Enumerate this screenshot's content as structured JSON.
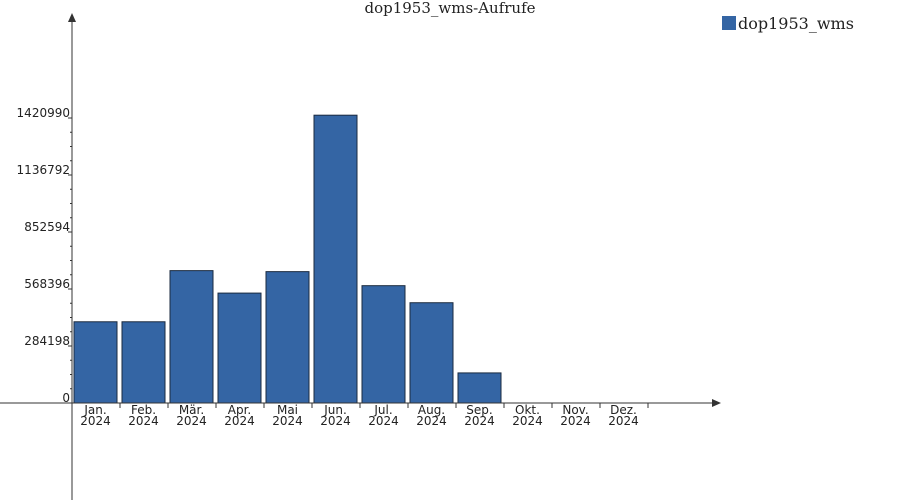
{
  "chart_data": {
    "type": "bar",
    "title": "dop1953_wms-Aufrufe",
    "categories": [
      {
        "month": "Jan.",
        "year": "2024"
      },
      {
        "month": "Feb.",
        "year": "2024"
      },
      {
        "month": "Mär.",
        "year": "2024"
      },
      {
        "month": "Apr.",
        "year": "2024"
      },
      {
        "month": "Mai",
        "year": "2024"
      },
      {
        "month": "Jun.",
        "year": "2024"
      },
      {
        "month": "Jul.",
        "year": "2024"
      },
      {
        "month": "Aug.",
        "year": "2024"
      },
      {
        "month": "Sep.",
        "year": "2024"
      },
      {
        "month": "Okt.",
        "year": "2024"
      },
      {
        "month": "Nov.",
        "year": "2024"
      },
      {
        "month": "Dez.",
        "year": "2024"
      }
    ],
    "series": [
      {
        "name": "dop1953_wms",
        "values": [
          405000,
          405000,
          660000,
          548000,
          655000,
          1435000,
          585000,
          500000,
          150000,
          0,
          0,
          0
        ]
      }
    ],
    "yticks": [
      0,
      284198,
      568396,
      852594,
      1136792,
      1420990
    ],
    "ytick_labels": [
      "0",
      "284198",
      "568396",
      "852594",
      "1136792",
      "1420990"
    ],
    "ylim": [
      0,
      1420990
    ],
    "legend_position": "top-right",
    "colors": {
      "bar": "#3465a4",
      "bar_edge": "#1a2a3f",
      "axis": "#333333"
    }
  }
}
